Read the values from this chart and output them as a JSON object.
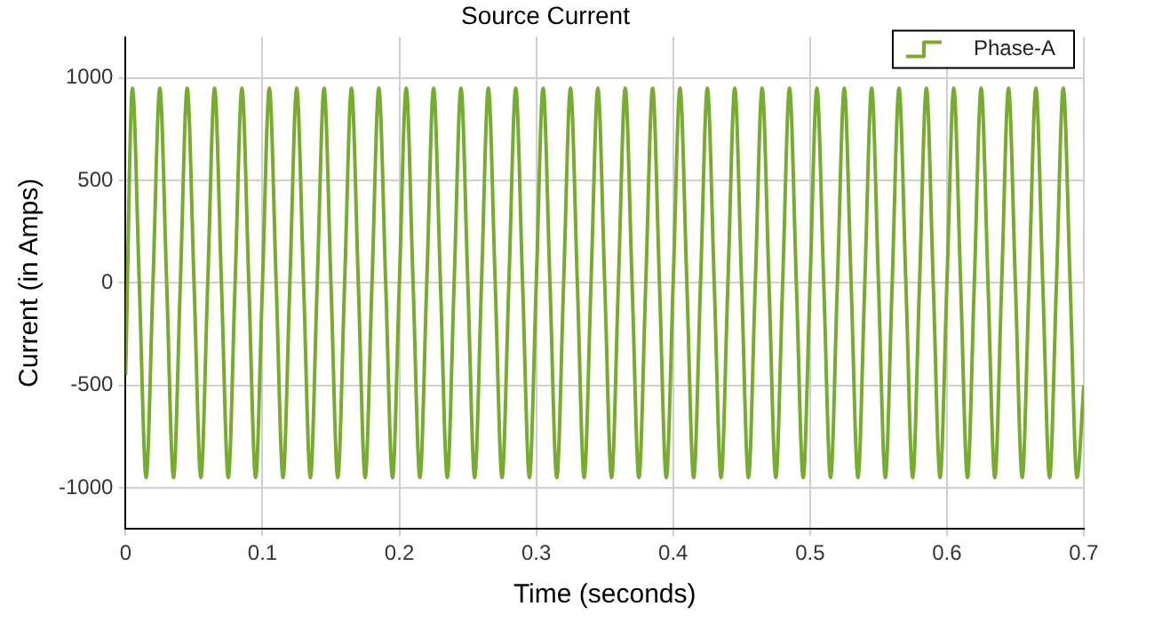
{
  "chart_data": {
    "type": "line",
    "title": "Source Current",
    "xlabel": "Time (seconds)",
    "ylabel": "Current (in Amps)",
    "x": [
      0,
      0.005,
      0.01,
      0.015,
      0.02,
      0.025,
      0.03,
      0.035,
      0.04,
      0.045,
      0.05,
      0.055,
      0.06,
      0.065,
      0.07,
      0.075,
      0.08,
      0.085,
      0.09,
      0.095,
      0.1,
      0.105,
      0.11,
      0.115,
      0.12,
      0.125,
      0.13,
      0.135,
      0.14,
      0.145,
      0.15,
      0.155,
      0.16,
      0.165,
      0.17,
      0.175,
      0.18,
      0.185,
      0.19,
      0.195,
      0.2,
      0.205,
      0.21,
      0.215,
      0.22,
      0.225,
      0.23,
      0.235,
      0.24,
      0.245,
      0.25,
      0.255,
      0.26,
      0.265,
      0.27,
      0.275,
      0.28,
      0.285,
      0.29,
      0.295,
      0.3,
      0.305,
      0.31,
      0.315,
      0.32,
      0.325,
      0.33,
      0.335,
      0.34,
      0.345,
      0.35,
      0.355,
      0.36,
      0.365,
      0.37,
      0.375,
      0.38,
      0.385,
      0.39,
      0.395,
      0.4,
      0.405,
      0.41,
      0.415,
      0.42,
      0.425,
      0.43,
      0.435,
      0.44,
      0.445,
      0.45,
      0.455,
      0.46,
      0.465,
      0.47,
      0.475,
      0.48,
      0.485,
      0.49,
      0.495,
      0.5,
      0.505,
      0.51,
      0.515,
      0.52,
      0.525,
      0.53,
      0.535,
      0.54,
      0.545,
      0.55,
      0.555,
      0.56,
      0.565,
      0.57,
      0.575,
      0.58,
      0.585,
      0.59,
      0.595,
      0.6,
      0.605,
      0.61,
      0.615,
      0.62,
      0.625,
      0.63,
      0.635,
      0.64,
      0.645,
      0.65,
      0.655,
      0.66,
      0.665,
      0.67,
      0.675,
      0.68,
      0.685,
      0.69,
      0.695,
      0.7
    ],
    "series": [
      {
        "name": "Phase-A",
        "color": "#77ac30",
        "values": [
          -450,
          950,
          0,
          -950,
          0,
          950,
          0,
          -950,
          0,
          950,
          0,
          -950,
          0,
          950,
          0,
          -950,
          0,
          950,
          0,
          -950,
          0,
          950,
          0,
          -950,
          0,
          950,
          0,
          -950,
          0,
          950,
          0,
          -950,
          0,
          950,
          0,
          -950,
          0,
          950,
          0,
          -950,
          0,
          950,
          0,
          -950,
          0,
          950,
          0,
          -950,
          0,
          950,
          0,
          -950,
          0,
          950,
          0,
          -950,
          0,
          950,
          0,
          -950,
          0,
          950,
          0,
          -950,
          0,
          950,
          0,
          -950,
          0,
          950,
          0,
          -950,
          0,
          950,
          0,
          -950,
          0,
          950,
          0,
          -950,
          0,
          950,
          0,
          -950,
          0,
          950,
          0,
          -950,
          0,
          950,
          0,
          -950,
          0,
          950,
          0,
          -950,
          0,
          950,
          0,
          -950,
          0,
          950,
          0,
          -950,
          0,
          950,
          0,
          -950,
          0,
          950,
          0,
          -950,
          0,
          950,
          0,
          -950,
          0,
          950,
          0,
          -950,
          0,
          950,
          0,
          -950,
          0,
          950,
          0,
          -950,
          0,
          950,
          0,
          -950,
          0,
          950,
          0,
          -950,
          0,
          950,
          0,
          -950,
          -500
        ]
      }
    ],
    "xlim": [
      0,
      0.7
    ],
    "xticks": [
      0,
      0.1,
      0.2,
      0.3,
      0.4,
      0.5,
      0.6,
      0.7
    ],
    "ylim": [
      -1200,
      1200
    ],
    "yticks": [
      -1000,
      -500,
      0,
      500,
      1000
    ],
    "grid": true,
    "legend": "top right",
    "line_style": "solid"
  }
}
